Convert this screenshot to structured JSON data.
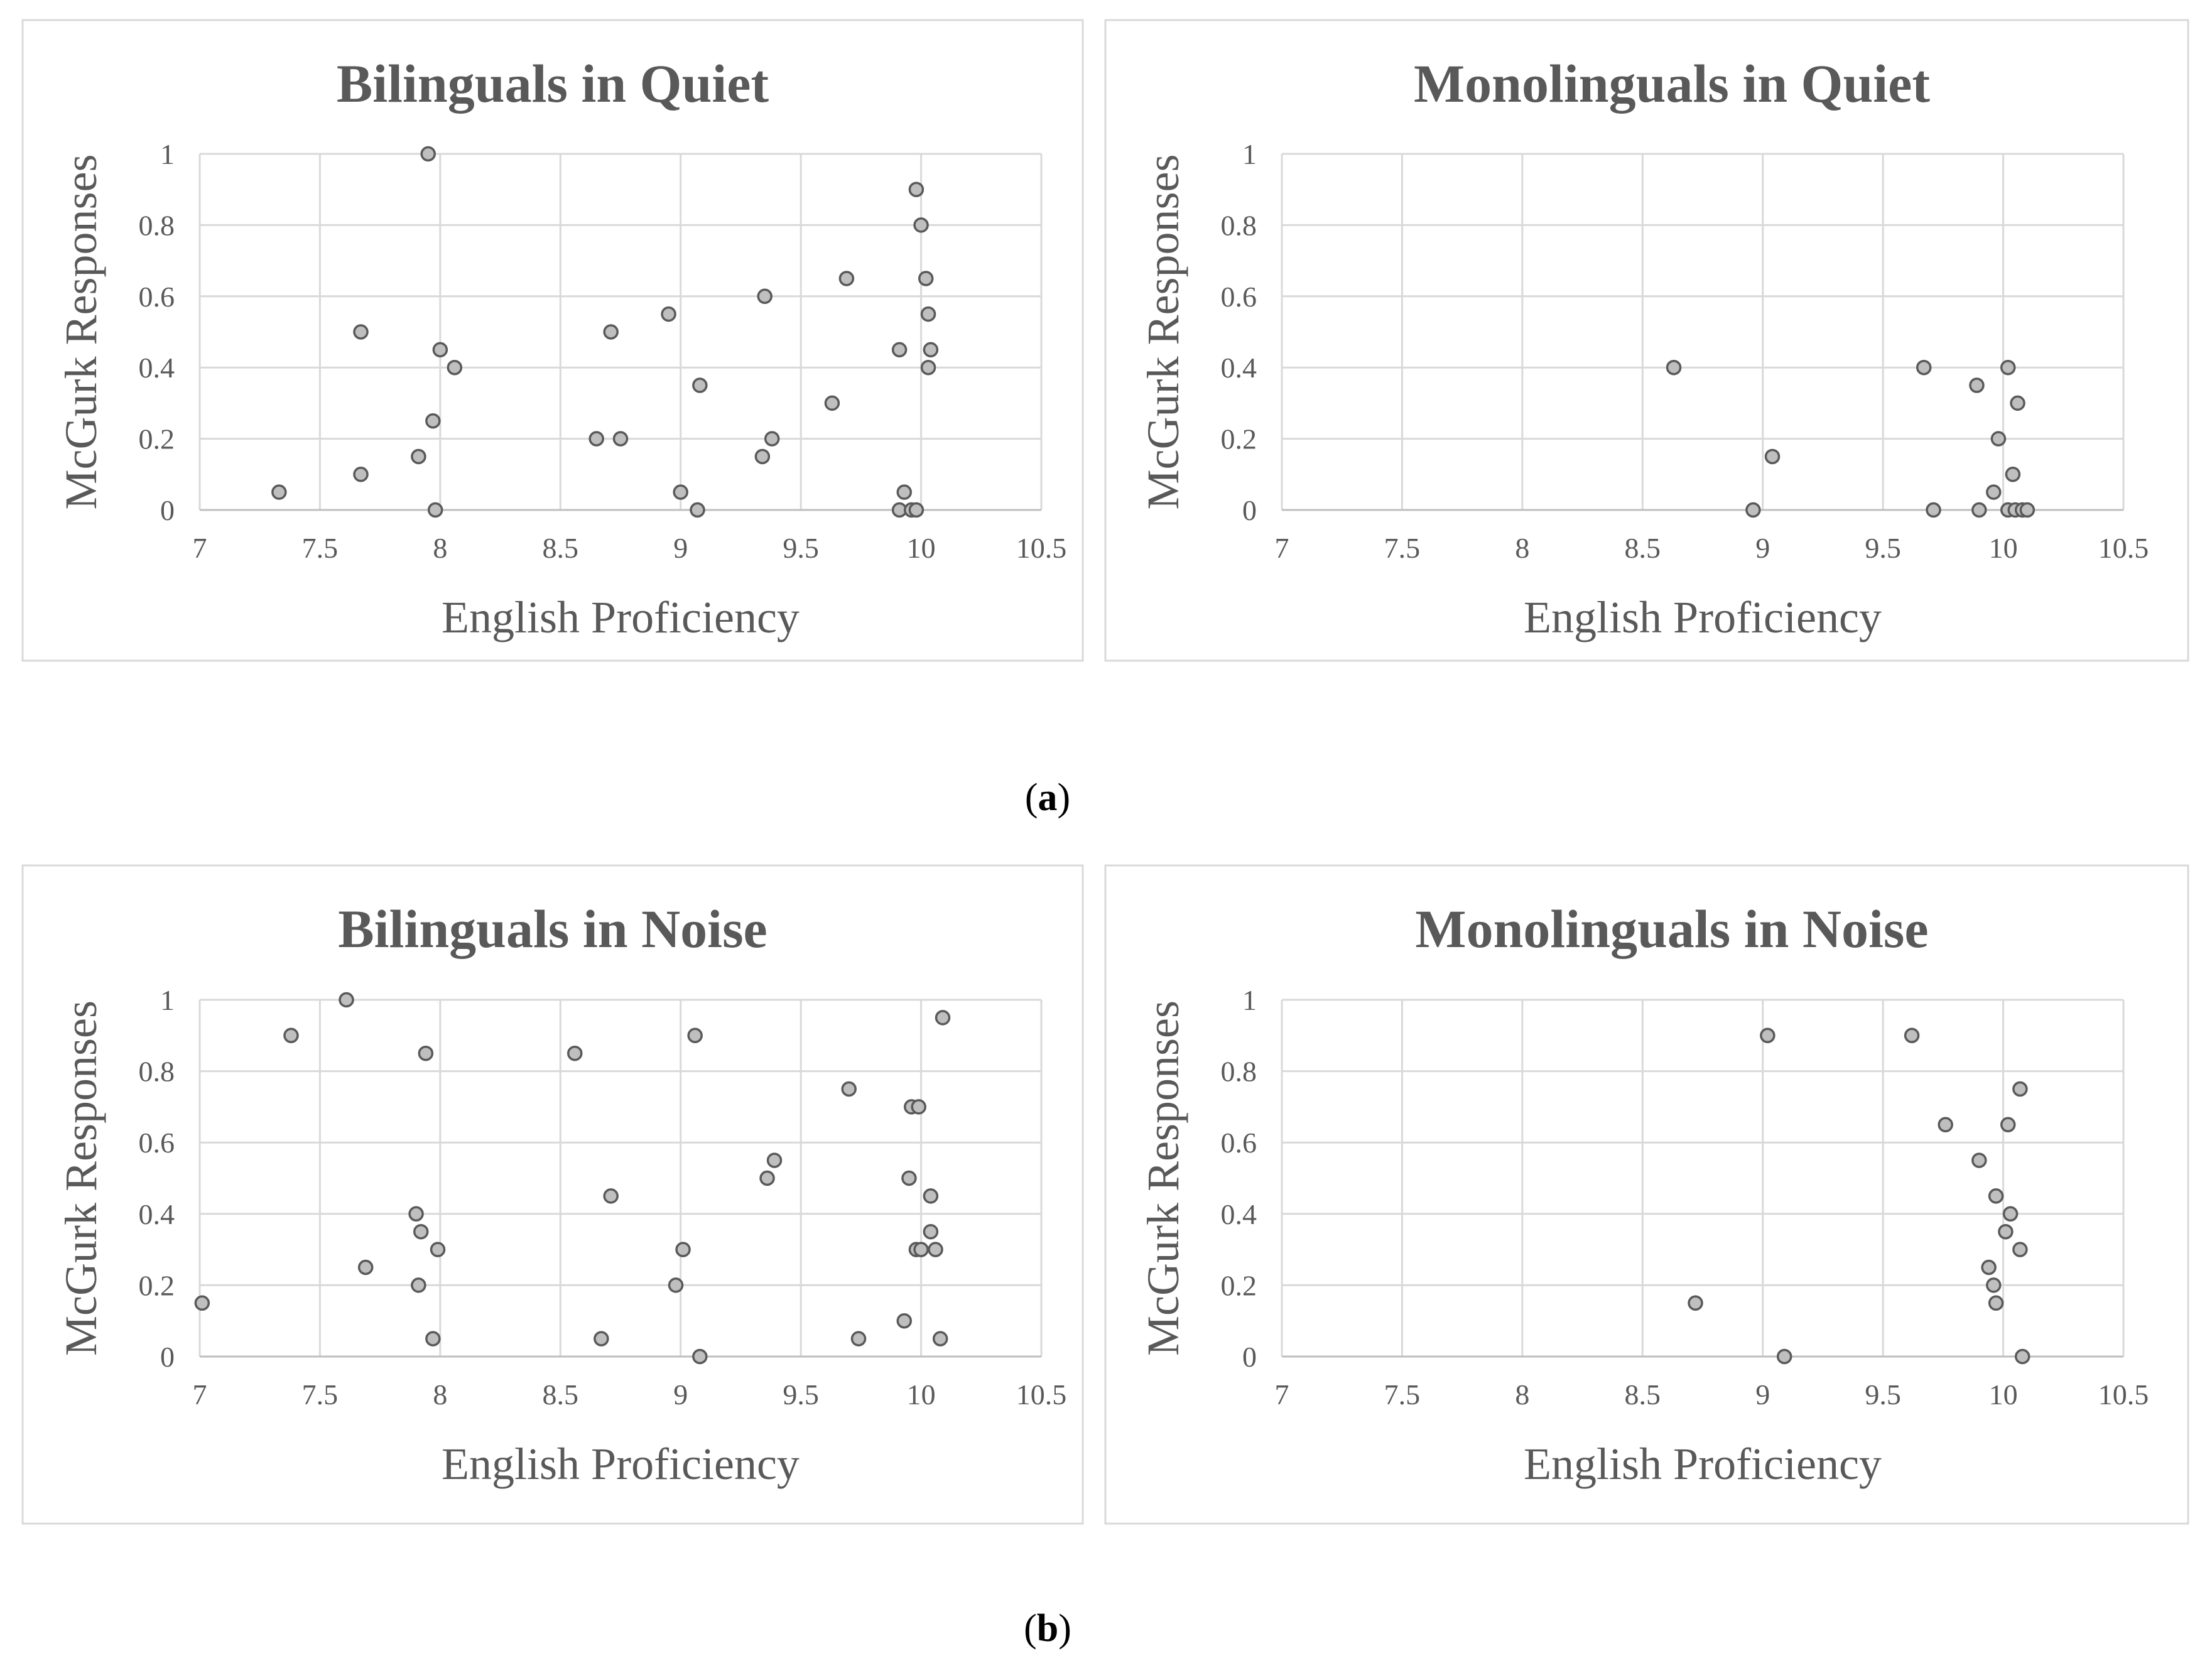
{
  "captions": {
    "a": "a",
    "b": "b"
  },
  "chart_data": [
    {
      "type": "scatter",
      "title": "Bilinguals in Quiet",
      "xlabel": "English Proficiency",
      "ylabel": "McGurk Responses",
      "xlim": [
        7,
        10.5
      ],
      "ylim": [
        0,
        1
      ],
      "x_ticks": [
        "7",
        "7.5",
        "8",
        "8.5",
        "9",
        "9.5",
        "10",
        "10.5"
      ],
      "y_ticks": [
        "0",
        "0.2",
        "0.4",
        "0.6",
        "0.8",
        "1"
      ],
      "grid": true,
      "points": [
        [
          7.33,
          0.05
        ],
        [
          7.67,
          0.1
        ],
        [
          7.67,
          0.5
        ],
        [
          7.91,
          0.15
        ],
        [
          7.95,
          1.0
        ],
        [
          7.97,
          0.25
        ],
        [
          7.98,
          0.0
        ],
        [
          8.0,
          0.45
        ],
        [
          8.06,
          0.4
        ],
        [
          8.65,
          0.2
        ],
        [
          8.71,
          0.5
        ],
        [
          8.75,
          0.2
        ],
        [
          8.95,
          0.55
        ],
        [
          9.0,
          0.05
        ],
        [
          9.07,
          0.0
        ],
        [
          9.08,
          0.35
        ],
        [
          9.34,
          0.15
        ],
        [
          9.35,
          0.6
        ],
        [
          9.38,
          0.2
        ],
        [
          9.63,
          0.3
        ],
        [
          9.69,
          0.65
        ],
        [
          9.91,
          0.45
        ],
        [
          9.91,
          0.0
        ],
        [
          9.93,
          0.05
        ],
        [
          9.96,
          0.0
        ],
        [
          9.98,
          0.9
        ],
        [
          9.98,
          0.0
        ],
        [
          10.0,
          0.8
        ],
        [
          10.02,
          0.65
        ],
        [
          10.03,
          0.55
        ],
        [
          10.03,
          0.4
        ],
        [
          10.04,
          0.45
        ]
      ]
    },
    {
      "type": "scatter",
      "title": "Monolinguals in Quiet",
      "xlabel": "English Proficiency",
      "ylabel": "McGurk Responses",
      "xlim": [
        7,
        10.5
      ],
      "ylim": [
        0,
        1
      ],
      "x_ticks": [
        "7",
        "7.5",
        "8",
        "8.5",
        "9",
        "9.5",
        "10",
        "10.5"
      ],
      "y_ticks": [
        "0",
        "0.2",
        "0.4",
        "0.6",
        "0.8",
        "1"
      ],
      "grid": true,
      "points": [
        [
          8.63,
          0.4
        ],
        [
          8.96,
          0.0
        ],
        [
          9.04,
          0.15
        ],
        [
          9.67,
          0.4
        ],
        [
          9.71,
          0.0
        ],
        [
          9.89,
          0.35
        ],
        [
          9.9,
          0.0
        ],
        [
          9.96,
          0.05
        ],
        [
          9.98,
          0.2
        ],
        [
          10.02,
          0.4
        ],
        [
          10.02,
          0.0
        ],
        [
          10.04,
          0.1
        ],
        [
          10.05,
          0.0
        ],
        [
          10.06,
          0.3
        ],
        [
          10.08,
          0.0
        ],
        [
          10.1,
          0.0
        ]
      ]
    },
    {
      "type": "scatter",
      "title": "Bilinguals in Noise",
      "xlabel": "English Proficiency",
      "ylabel": "McGurk Responses",
      "xlim": [
        7,
        10.5
      ],
      "ylim": [
        0,
        1
      ],
      "x_ticks": [
        "7",
        "7.5",
        "8",
        "8.5",
        "9",
        "9.5",
        "10",
        "10.5"
      ],
      "y_ticks": [
        "0",
        "0.2",
        "0.4",
        "0.6",
        "0.8",
        "1"
      ],
      "grid": true,
      "points": [
        [
          7.01,
          0.15
        ],
        [
          7.38,
          0.9
        ],
        [
          7.61,
          1.0
        ],
        [
          7.69,
          0.25
        ],
        [
          7.9,
          0.4
        ],
        [
          7.91,
          0.2
        ],
        [
          7.92,
          0.35
        ],
        [
          7.94,
          0.85
        ],
        [
          7.97,
          0.05
        ],
        [
          7.99,
          0.3
        ],
        [
          8.56,
          0.85
        ],
        [
          8.67,
          0.05
        ],
        [
          8.71,
          0.45
        ],
        [
          8.98,
          0.2
        ],
        [
          9.01,
          0.3
        ],
        [
          9.06,
          0.9
        ],
        [
          9.08,
          0.0
        ],
        [
          9.36,
          0.5
        ],
        [
          9.39,
          0.55
        ],
        [
          9.7,
          0.75
        ],
        [
          9.74,
          0.05
        ],
        [
          9.93,
          0.1
        ],
        [
          9.95,
          0.5
        ],
        [
          9.96,
          0.7
        ],
        [
          9.98,
          0.3
        ],
        [
          9.99,
          0.7
        ],
        [
          10.0,
          0.3
        ],
        [
          10.04,
          0.45
        ],
        [
          10.04,
          0.35
        ],
        [
          10.06,
          0.3
        ],
        [
          10.08,
          0.05
        ],
        [
          10.09,
          0.95
        ]
      ]
    },
    {
      "type": "scatter",
      "title": "Monolinguals in Noise",
      "xlabel": "English Proficiency",
      "ylabel": "McGurk Responses",
      "xlim": [
        7,
        10.5
      ],
      "ylim": [
        0,
        1
      ],
      "x_ticks": [
        "7",
        "7.5",
        "8",
        "8.5",
        "9",
        "9.5",
        "10",
        "10.5"
      ],
      "y_ticks": [
        "0",
        "0.2",
        "0.4",
        "0.6",
        "0.8",
        "1"
      ],
      "grid": true,
      "points": [
        [
          8.72,
          0.15
        ],
        [
          9.02,
          0.9
        ],
        [
          9.09,
          0.0
        ],
        [
          9.62,
          0.9
        ],
        [
          9.76,
          0.65
        ],
        [
          9.9,
          0.55
        ],
        [
          9.94,
          0.25
        ],
        [
          9.96,
          0.2
        ],
        [
          9.97,
          0.45
        ],
        [
          9.97,
          0.15
        ],
        [
          10.01,
          0.35
        ],
        [
          10.02,
          0.65
        ],
        [
          10.03,
          0.4
        ],
        [
          10.07,
          0.3
        ],
        [
          10.07,
          0.75
        ],
        [
          10.08,
          0.0
        ]
      ]
    }
  ]
}
